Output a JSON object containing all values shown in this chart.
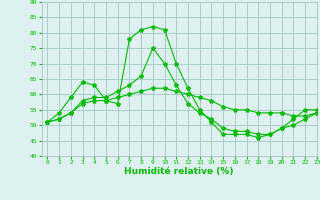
{
  "title": "",
  "xlabel": "Humidité relative (%)",
  "ylabel": "",
  "bg_color": "#dff0f0",
  "grid_color": "#aacccc",
  "line_color": "#00bb00",
  "marker": "*",
  "xlim": [
    -0.5,
    23
  ],
  "ylim": [
    40,
    90
  ],
  "yticks": [
    40,
    45,
    50,
    55,
    60,
    65,
    70,
    75,
    80,
    85,
    90
  ],
  "xticks": [
    0,
    1,
    2,
    3,
    4,
    5,
    6,
    7,
    8,
    9,
    10,
    11,
    12,
    13,
    14,
    15,
    16,
    17,
    18,
    19,
    20,
    21,
    22,
    23
  ],
  "series1": {
    "x": [
      0,
      1,
      2,
      3,
      4,
      5,
      6,
      7,
      8,
      9,
      10,
      11,
      12,
      13,
      14,
      15,
      16,
      17,
      18,
      19,
      20,
      21,
      22,
      23
    ],
    "y": [
      51,
      54,
      59,
      64,
      63,
      58,
      57,
      78,
      81,
      82,
      81,
      70,
      62,
      55,
      51,
      47,
      47,
      47,
      46,
      47,
      49,
      52,
      55,
      55
    ]
  },
  "series2": {
    "x": [
      0,
      1,
      2,
      3,
      4,
      5,
      6,
      7,
      8,
      9,
      10,
      11,
      12,
      13,
      14,
      15,
      16,
      17,
      18,
      19,
      20,
      21,
      22,
      23
    ],
    "y": [
      51,
      52,
      54,
      58,
      59,
      59,
      61,
      63,
      66,
      75,
      70,
      63,
      57,
      54,
      52,
      49,
      48,
      48,
      47,
      47,
      49,
      50,
      52,
      54
    ]
  },
  "series3": {
    "x": [
      0,
      1,
      2,
      3,
      4,
      5,
      6,
      7,
      8,
      9,
      10,
      11,
      12,
      13,
      14,
      15,
      16,
      17,
      18,
      19,
      20,
      21,
      22,
      23
    ],
    "y": [
      51,
      52,
      54,
      57,
      58,
      58,
      59,
      60,
      61,
      62,
      62,
      61,
      60,
      59,
      58,
      56,
      55,
      55,
      54,
      54,
      54,
      53,
      53,
      54
    ]
  }
}
